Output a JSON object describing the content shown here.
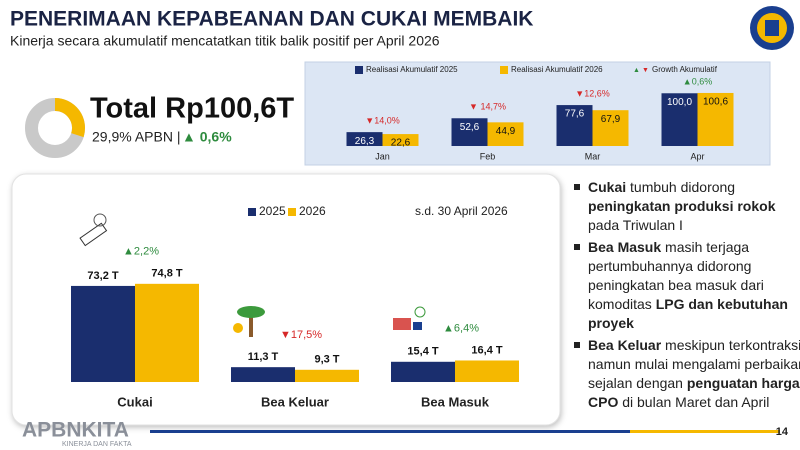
{
  "header": {
    "title": "PENERIMAAN KEPABEANAN DAN CUKAI MEMBAIK",
    "subtitle": "Kinerja secara akumulatif mencatatkan titik balik positif per April 2026"
  },
  "total": {
    "label": "Total Rp100,6T",
    "apbn": "29,9% APBN |",
    "growth": "▲ 0,6%"
  },
  "chart_data": [
    {
      "type": "donut",
      "values": [
        29.9
      ],
      "colors": [
        "#f5b800",
        "#c9c9c9"
      ]
    },
    {
      "type": "bar",
      "categories": [
        "Jan",
        "Feb",
        "Mar",
        "Apr"
      ],
      "ylim": [
        0,
        110
      ],
      "series": [
        {
          "name": "Realisasi Akumulatif 2025",
          "color": "#1a2e6e",
          "values": [
            26.3,
            52.6,
            77.6,
            100.0
          ],
          "value_labels": [
            "26,3",
            "52,6",
            "77,6",
            "100,0"
          ]
        },
        {
          "name": "Realisasi Akumulatif 2026",
          "color": "#f5b800",
          "values": [
            22.6,
            44.9,
            67.9,
            100.6
          ],
          "value_labels": [
            "22,6",
            "44,9",
            "67,9",
            "100,6"
          ]
        }
      ],
      "growth": {
        "name": "Growth Akumulatif",
        "values": [
          -14.0,
          -14.7,
          -12.6,
          0.6
        ],
        "value_labels": [
          "▼14,0%",
          "▼ 14,7%",
          "▼12,6%",
          "▲0,6%"
        ]
      }
    },
    {
      "type": "bar",
      "categories": [
        "Cukai",
        "Bea Keluar",
        "Bea Masuk"
      ],
      "ylim": [
        0,
        80
      ],
      "note": "s.d. 30 April 2026",
      "series": [
        {
          "name": "2025",
          "color": "#1a2e6e",
          "values": [
            73.2,
            11.3,
            15.4
          ],
          "value_labels": [
            "73,2 T",
            "11,3 T",
            "15,4 T"
          ]
        },
        {
          "name": "2026",
          "color": "#f5b800",
          "values": [
            74.8,
            9.3,
            16.4
          ],
          "value_labels": [
            "74,8 T",
            "9,3 T",
            "16,4 T"
          ]
        }
      ],
      "growth": {
        "values": [
          2.2,
          -17.5,
          6.4
        ],
        "value_labels": [
          "▲2,2%",
          "▼17,5%",
          "▲6,4%"
        ]
      }
    }
  ],
  "bullets": [
    [
      {
        "text": "Cukai",
        "bold": true
      },
      {
        "text": " tumbuh didorong "
      },
      {
        "text": "peningkatan produksi rokok",
        "bold": true
      },
      {
        "text": " pada Triwulan I"
      }
    ],
    [
      {
        "text": "Bea Masuk",
        "bold": true
      },
      {
        "text": " masih terjaga pertumbuhannya didorong peningkatan bea masuk dari komoditas "
      },
      {
        "text": "LPG dan kebutuhan proyek",
        "bold": true
      }
    ],
    [
      {
        "text": "Bea Keluar",
        "bold": true
      },
      {
        "text": " meskipun terkontraksi namun mulai mengalami perbaikan sejalan dengan "
      },
      {
        "text": "penguatan harga CPO",
        "bold": true
      },
      {
        "text": " di bulan Maret dan April"
      }
    ]
  ],
  "footer": {
    "brand": "APBNKITA",
    "tagline": "KINERJA DAN FAKTA",
    "page": "14"
  }
}
